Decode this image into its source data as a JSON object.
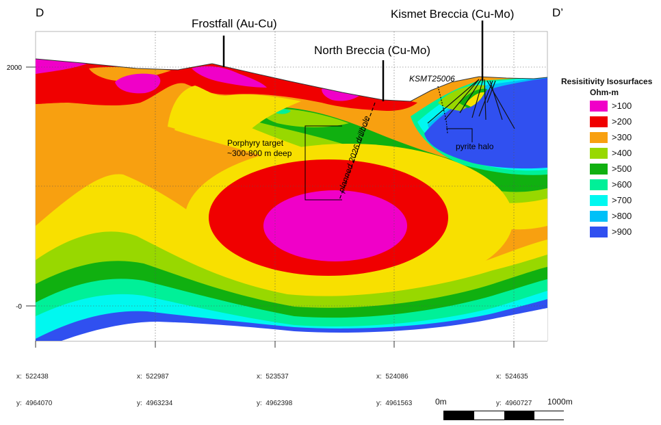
{
  "section_start_label": "D",
  "section_end_label": "D’",
  "targets": {
    "frostfall": "Frostfall (Au-Cu)",
    "north_breccia": "North Breccia (Cu-Mo)",
    "kismet_breccia": "Kismet Breccia (Cu-Mo)"
  },
  "annotations": {
    "drillhole_existing": "KSMT25006",
    "porphyry_target_line1": "Porphyry target",
    "porphyry_target_line2": "~300-800 m deep",
    "planned_drillhole": "planned 2026 drillhole",
    "pyrite_halo": "pyrite halo"
  },
  "elevation_ticks": [
    "2000",
    "-0"
  ],
  "coordinates": [
    {
      "x": "x:  522438",
      "y": "y:  4964070"
    },
    {
      "x": "x:  522987",
      "y": "y:  4963234"
    },
    {
      "x": "x:  523537",
      "y": "y:  4962398"
    },
    {
      "x": "x:  524086",
      "y": "y:  4961563"
    },
    {
      "x": "x:  524635",
      "y": "y:  4960727"
    }
  ],
  "legend": {
    "title": "Resisitivity Isosurfaces",
    "unit": "Ohm-m",
    "items": [
      {
        "label": ">100",
        "color": "#f000c8"
      },
      {
        "label": ">200",
        "color": "#f00000"
      },
      {
        "label": ">300",
        "color": "#f8a010"
      },
      {
        "label": ">400",
        "color": "#98d800"
      },
      {
        "label": ">500",
        "color": "#10b010"
      },
      {
        "label": ">600",
        "color": "#00f098"
      },
      {
        "label": ">700",
        "color": "#00f8f0"
      },
      {
        "label": ">800",
        "color": "#00c0f8"
      },
      {
        "label": ">900",
        "color": "#3050f0"
      }
    ]
  },
  "scale": {
    "start": "0m",
    "end": "1000m"
  }
}
